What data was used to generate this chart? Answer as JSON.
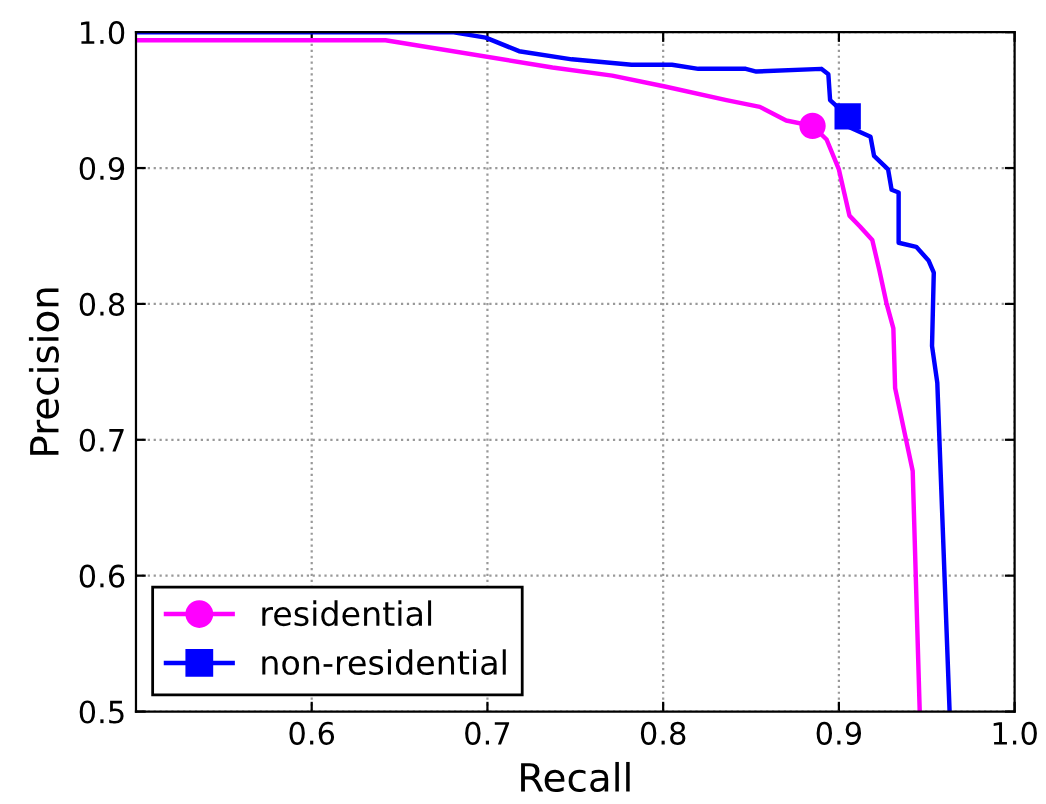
{
  "chart_data": {
    "type": "line",
    "xlabel": "Recall",
    "ylabel": "Precision",
    "xlim": [
      0.5,
      1.0
    ],
    "ylim": [
      0.5,
      1.0
    ],
    "xticks": [
      0.6,
      0.7,
      0.8,
      0.9,
      {
        "value": 1.0,
        "label": "1.0"
      }
    ],
    "yticks": [
      0.5,
      0.6,
      0.7,
      0.8,
      0.9,
      {
        "value": 1.0,
        "label": "1.0"
      }
    ],
    "grid": true,
    "legend": "bottom left",
    "line_style": "solid",
    "series": [
      {
        "name": "residential",
        "color": "#ff00ff",
        "x": [
          0.5,
          0.642,
          0.737,
          0.771,
          0.801,
          0.836,
          0.855,
          0.87,
          0.885,
          0.893,
          0.9,
          0.906,
          0.912,
          0.919,
          0.923,
          0.927,
          0.931,
          0.932,
          0.942,
          0.946
        ],
        "values": [
          0.994,
          0.994,
          0.974,
          0.968,
          0.96,
          0.95,
          0.945,
          0.935,
          0.931,
          0.921,
          0.899,
          0.865,
          0.857,
          0.847,
          0.825,
          0.801,
          0.782,
          0.738,
          0.677,
          0.5
        ]
      },
      {
        "name": "non-residential",
        "color": "#0000ff",
        "x": [
          0.5,
          0.68,
          0.699,
          0.718,
          0.748,
          0.782,
          0.805,
          0.82,
          0.847,
          0.853,
          0.89,
          0.894,
          0.895,
          0.905,
          0.906,
          0.918,
          0.92,
          0.928,
          0.93,
          0.934,
          0.934,
          0.944,
          0.951,
          0.954,
          0.953,
          0.956,
          0.963
        ],
        "values": [
          1.0,
          1.0,
          0.996,
          0.986,
          0.98,
          0.976,
          0.976,
          0.973,
          0.973,
          0.971,
          0.973,
          0.969,
          0.95,
          0.938,
          0.93,
          0.923,
          0.909,
          0.899,
          0.884,
          0.882,
          0.845,
          0.842,
          0.832,
          0.823,
          0.769,
          0.742,
          0.5
        ]
      },
      {
        "type": "scatter",
        "marker": "circle",
        "color": "#ff00ff",
        "x": [
          0.885
        ],
        "values": [
          0.931
        ]
      },
      {
        "type": "scatter",
        "marker": "square",
        "color": "#0000ff",
        "x": [
          0.905
        ],
        "values": [
          0.938
        ]
      }
    ]
  }
}
